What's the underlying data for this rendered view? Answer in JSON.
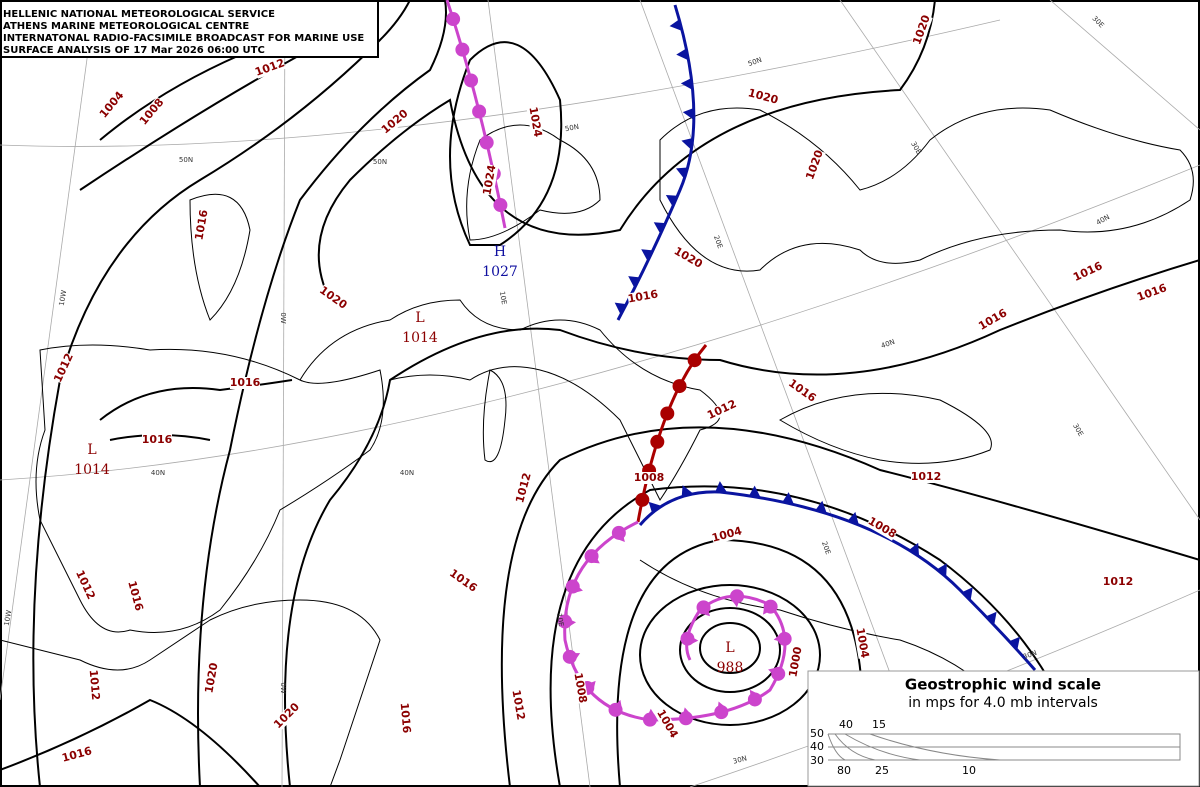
{
  "header": {
    "lines": [
      "HELLENIC NATIONAL METEOROLOGICAL SERVICE",
      "ATHENS MARINE METEOROLOGICAL CENTRE",
      "INTERNATONAL RADIO-FACSIMILE BROADCAST FOR MARINE USE",
      "SURFACE ANALYSIS OF 17 Mar 2026 06:00 UTC"
    ]
  },
  "pressure_centers": [
    {
      "kind": "H",
      "value": "1027"
    },
    {
      "kind": "L",
      "value": "1014"
    },
    {
      "kind": "L",
      "value": "1014"
    },
    {
      "kind": "L",
      "value": "988"
    }
  ],
  "isobar_labels": [
    "1004",
    "1008",
    "1012",
    "1020",
    "1024",
    "1024",
    "1020",
    "1020",
    "1020",
    "1016",
    "1020",
    "1016",
    "1020",
    "1012",
    "1016",
    "1016",
    "1012",
    "1016",
    "1016",
    "1016",
    "1016",
    "1012",
    "1008",
    "1012",
    "1008",
    "1004",
    "1012",
    "1012",
    "1016",
    "1016",
    "1004",
    "1000",
    "1008",
    "1012",
    "1016",
    "1020",
    "1012",
    "1020",
    "1004",
    "1016"
  ],
  "graticule_labels": [
    "50N",
    "50N",
    "50N",
    "50N",
    "40N",
    "40N",
    "40N",
    "40N",
    "30N",
    "30N",
    "30E",
    "30E",
    "30E",
    "20E",
    "20E",
    "10E",
    "10E",
    "0W",
    "0W",
    "10W",
    "10W"
  ],
  "wind_scale": {
    "title": "Geostrophic wind scale",
    "subtitle": "in mps for 4.0 mb intervals",
    "left_labels": [
      "50",
      "40",
      "30"
    ],
    "top_labels": [
      "40",
      "15"
    ],
    "bottom_labels": [
      "80",
      "25",
      "10"
    ]
  }
}
